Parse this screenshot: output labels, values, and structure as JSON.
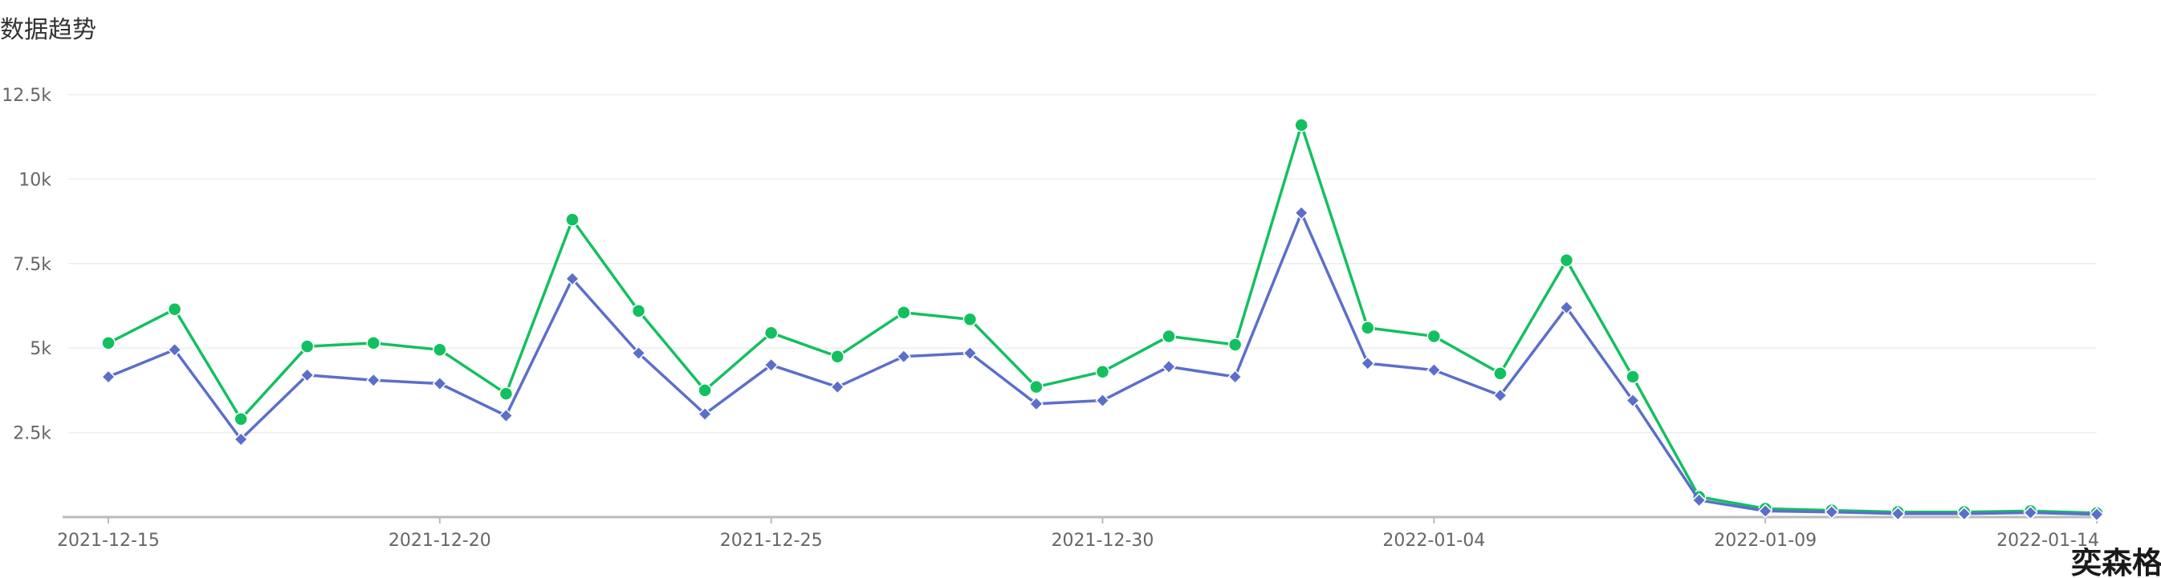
{
  "chart_data": {
    "type": "line",
    "title": "数据趋势",
    "x": [
      "2021-12-15",
      "2021-12-16",
      "2021-12-17",
      "2021-12-18",
      "2021-12-19",
      "2021-12-20",
      "2021-12-21",
      "2021-12-22",
      "2021-12-23",
      "2021-12-24",
      "2021-12-25",
      "2021-12-26",
      "2021-12-27",
      "2021-12-28",
      "2021-12-29",
      "2021-12-30",
      "2021-12-31",
      "2022-01-01",
      "2022-01-02",
      "2022-01-03",
      "2022-01-04",
      "2022-01-05",
      "2022-01-06",
      "2022-01-07",
      "2022-01-08",
      "2022-01-09",
      "2022-01-10",
      "2022-01-11",
      "2022-01-12",
      "2022-01-13",
      "2022-01-14"
    ],
    "xtick_labels": [
      "2021-12-15",
      "2021-12-20",
      "2021-12-25",
      "2021-12-30",
      "2022-01-04",
      "2022-01-09",
      "2022-01-14"
    ],
    "series": [
      {
        "color": "#13c060",
        "marker": "circle",
        "values": [
          5150,
          6150,
          2900,
          5050,
          5150,
          4950,
          3650,
          8800,
          6100,
          3750,
          5450,
          4750,
          6050,
          5850,
          3850,
          4300,
          5350,
          5100,
          11600,
          5600,
          5350,
          4250,
          7600,
          4150,
          600,
          250,
          200,
          150,
          150,
          180,
          120
        ]
      },
      {
        "color": "#5b6fca",
        "marker": "diamond",
        "values": [
          4150,
          4950,
          2300,
          4200,
          4050,
          3950,
          3000,
          7050,
          4850,
          3050,
          4500,
          3850,
          4750,
          4850,
          3350,
          3450,
          4450,
          4150,
          9000,
          4550,
          4350,
          3600,
          6200,
          3450,
          500,
          180,
          150,
          100,
          100,
          130,
          80
        ]
      }
    ],
    "yticks": [
      2500,
      5000,
      7500,
      10000,
      12500
    ],
    "ytick_labels": [
      "2.5k",
      "5k",
      "7.5k",
      "10k",
      "12.5k"
    ],
    "ylim": [
      0,
      12500
    ],
    "grid": true
  },
  "watermark": "奕森格"
}
